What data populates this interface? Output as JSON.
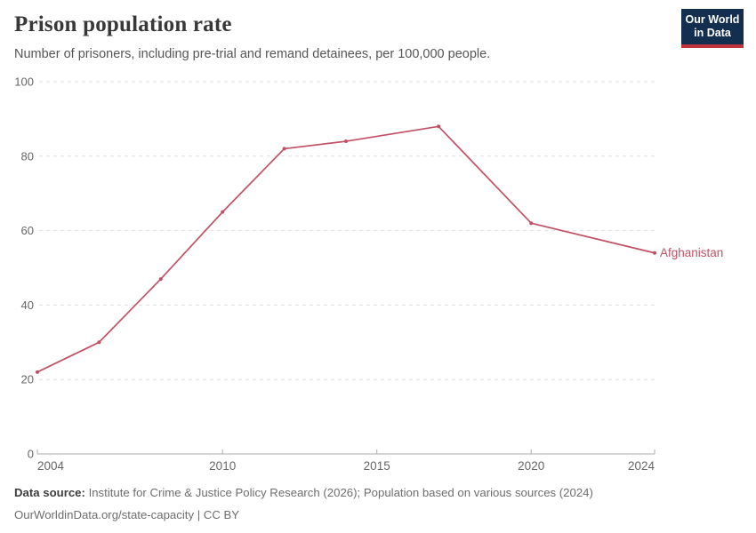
{
  "header": {
    "title": "Prison population rate",
    "subtitle": "Number of prisoners, including pre-trial and remand detainees, per 100,000 people."
  },
  "logo": {
    "line1": "Our World",
    "line2": "in Data"
  },
  "chart_data": {
    "type": "line",
    "title": "Prison population rate",
    "x": [
      2004,
      2006,
      2008,
      2010,
      2012,
      2014,
      2017,
      2020,
      2024
    ],
    "series": [
      {
        "name": "Afghanistan",
        "color": "#C15065",
        "values": [
          22,
          30,
          47,
          65,
          82,
          84,
          88,
          62,
          54
        ]
      }
    ],
    "xlim": [
      2004,
      2024
    ],
    "ylim": [
      0,
      100
    ],
    "x_ticks": [
      2004,
      2010,
      2015,
      2020,
      2024
    ],
    "y_ticks": [
      0,
      20,
      40,
      60,
      80,
      100
    ],
    "grid": "horizontal-dashed",
    "legend": "end-of-line-label",
    "end_label": "Afghanistan",
    "xlabel": "",
    "ylabel": ""
  },
  "footer": {
    "source_label": "Data source:",
    "source_text": "Institute for Crime & Justice Policy Research (2026); Population based on various sources (2024)",
    "note": "OurWorldinData.org/state-capacity | CC BY"
  },
  "colors": {
    "accent_line": "#C15065",
    "logo_bg": "#142E4F",
    "logo_underline": "#C0333C",
    "grid": "#e1e1e1",
    "axis": "#ababab",
    "tick_text": "#666666"
  }
}
